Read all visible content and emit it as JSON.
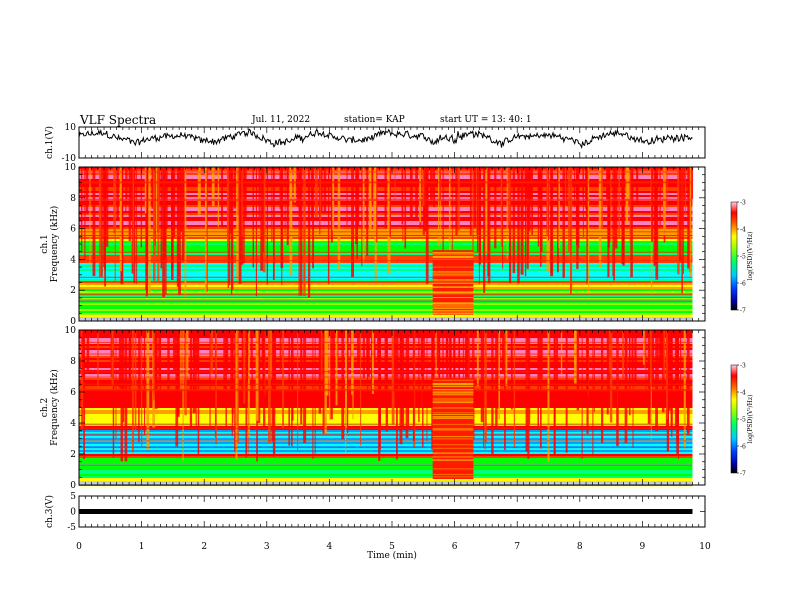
{
  "header": {
    "title": "VLF Spectra",
    "date": "Jul. 11, 2022",
    "station": "station= KAP",
    "start": "start  UT =   13: 40: 1"
  },
  "chart_data": [
    {
      "type": "line",
      "panel": "ch1-waveform",
      "ylabel": "ch.1(V)",
      "ylim": [
        -10,
        10
      ],
      "yticks": [
        "10",
        "-10"
      ],
      "x_range_min": [
        0,
        9.8
      ],
      "description_color": "#000000"
    },
    {
      "type": "heatmap",
      "panel": "ch1-spectrogram",
      "ylabel": "ch.1\nFrequency  (kHz)",
      "ylabel_lines": [
        "ch.1",
        "Frequency  (kHz)"
      ],
      "ylim": [
        0,
        10
      ],
      "yticks": [
        "0",
        "2",
        "4",
        "6",
        "8",
        "10"
      ],
      "colorbar": {
        "label": "log(PSD)(V²/Hz)",
        "ticks": [
          "-3",
          "-4",
          "-5",
          "-6",
          "-7"
        ],
        "range": [
          -7,
          -3
        ]
      },
      "disturbance_min": [
        5.65,
        6.3
      ]
    },
    {
      "type": "heatmap",
      "panel": "ch2-spectrogram",
      "ylabel": "ch.2\nFrequency  (kHz)",
      "ylabel_lines": [
        "ch.2",
        "Frequency  (kHz)"
      ],
      "ylim": [
        0,
        10
      ],
      "yticks": [
        "0",
        "2",
        "4",
        "6",
        "8",
        "10"
      ],
      "colorbar": {
        "label": "log(PSD)(V²/Hz)",
        "ticks": [
          "-3",
          "-4",
          "-5",
          "-6",
          "-7"
        ],
        "range": [
          -7,
          -3
        ]
      },
      "disturbance_min": [
        5.65,
        6.3
      ]
    },
    {
      "type": "line",
      "panel": "ch3-waveform",
      "ylabel": "ch.3(V)",
      "ylim": [
        -5,
        5
      ],
      "yticks": [
        "5",
        "0",
        "-5"
      ],
      "x_range_min": [
        0,
        9.8
      ]
    }
  ],
  "xaxis": {
    "label": "Time  (min)",
    "ticks": [
      "0",
      "1",
      "2",
      "3",
      "4",
      "5",
      "6",
      "7",
      "8",
      "9",
      "10"
    ],
    "range": [
      0,
      10
    ]
  },
  "colormap": [
    "#000080",
    "#0000ff",
    "#00a0ff",
    "#00ffff",
    "#00ff80",
    "#00ff00",
    "#a0ff00",
    "#ffff00",
    "#ffa000",
    "#ff4000",
    "#ff0000",
    "#ff80c0",
    "#ffffff"
  ]
}
